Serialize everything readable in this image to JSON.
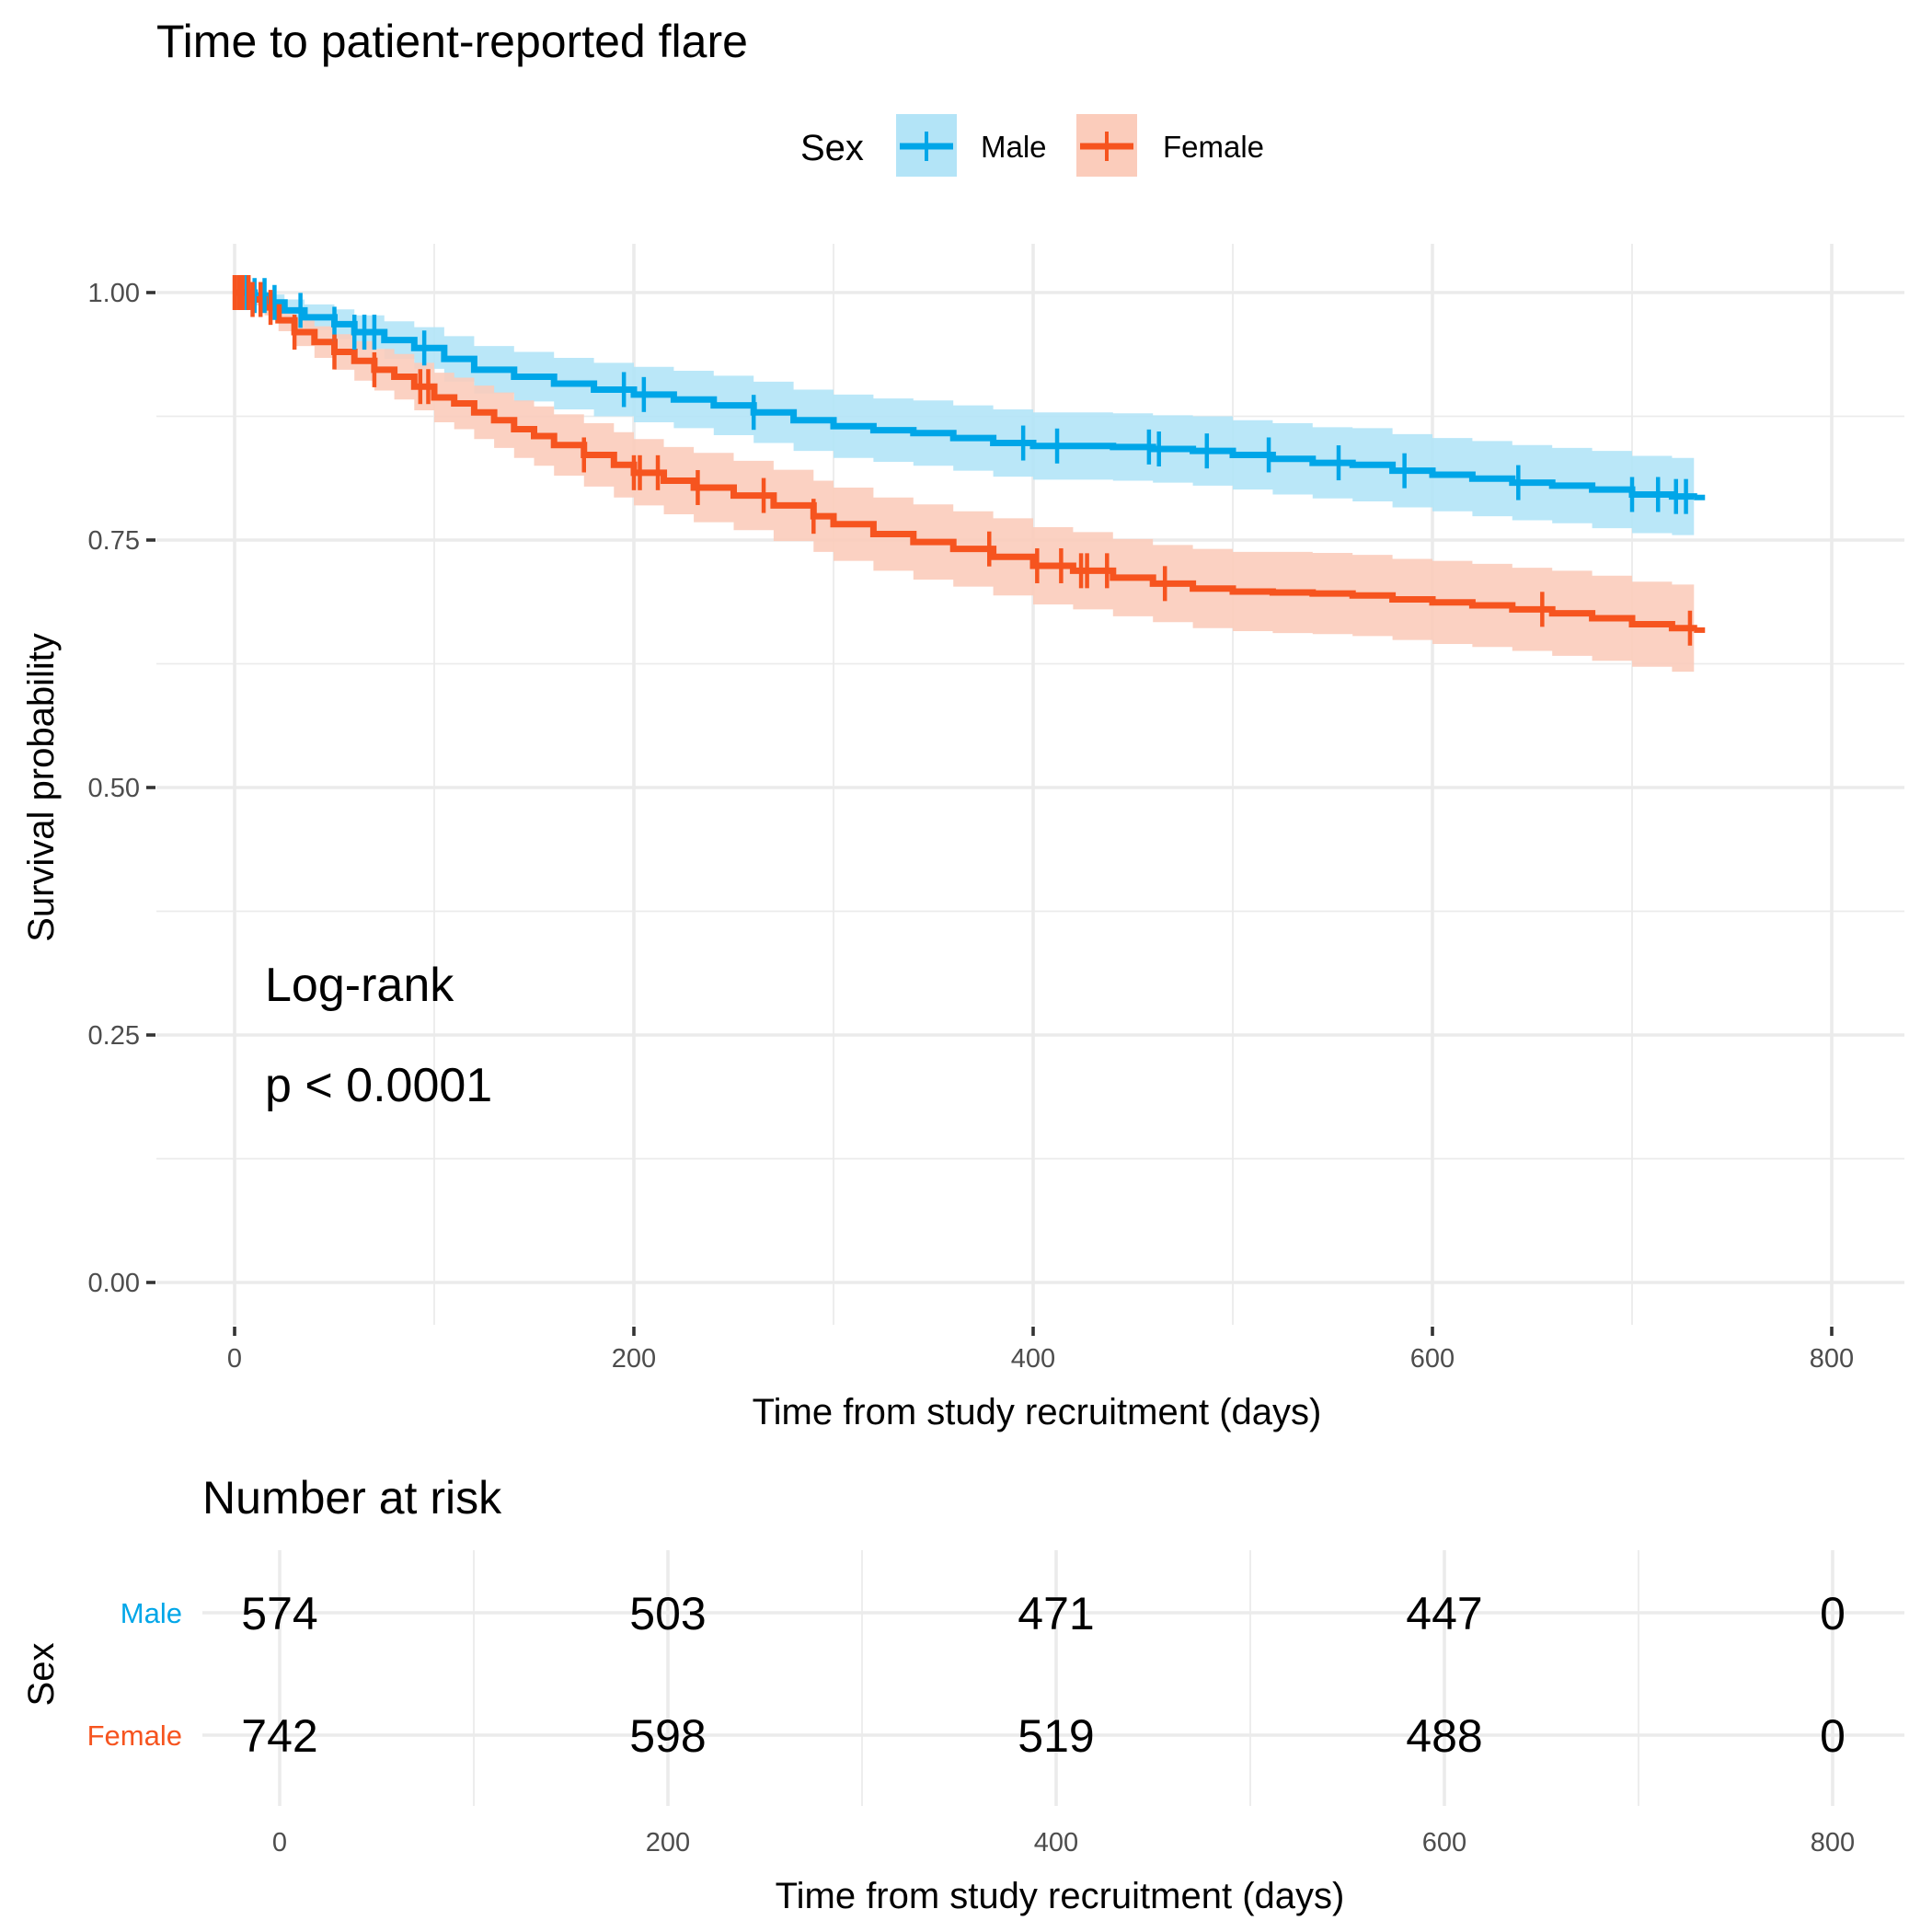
{
  "chart_data": {
    "type": "line",
    "subtype": "kaplan-meier",
    "title": "Time to patient-reported flare",
    "xlabel": "Time from study recruitment (days)",
    "ylabel": "Survival probability",
    "xlim": [
      0,
      800
    ],
    "ylim": [
      0,
      1
    ],
    "x_ticks": [
      0,
      200,
      400,
      600,
      800
    ],
    "x_tick_labels": [
      "0",
      "200",
      "400",
      "600",
      "800"
    ],
    "y_ticks": [
      0,
      0.25,
      0.5,
      0.75,
      1.0
    ],
    "y_tick_labels": [
      "0.00",
      "0.25",
      "0.50",
      "0.75",
      "1.00"
    ],
    "grid": true,
    "legend": {
      "title": "Sex",
      "placement": "top",
      "entries": [
        "Male",
        "Female"
      ]
    },
    "annotation": {
      "line1": "Log-rank",
      "line2": "p < 0.0001"
    },
    "series": [
      {
        "name": "Male",
        "color": "#00A6E8",
        "ribbon_color": "#B3E4F7",
        "x": [
          0,
          10,
          18,
          25,
          35,
          50,
          60,
          75,
          90,
          105,
          120,
          140,
          160,
          180,
          200,
          220,
          240,
          260,
          280,
          300,
          320,
          340,
          360,
          380,
          400,
          420,
          440,
          460,
          480,
          500,
          520,
          540,
          560,
          580,
          600,
          620,
          640,
          660,
          680,
          700,
          720,
          731
        ],
        "survival": [
          1.0,
          0.997,
          0.99,
          0.982,
          0.975,
          0.968,
          0.96,
          0.952,
          0.944,
          0.933,
          0.922,
          0.915,
          0.908,
          0.902,
          0.897,
          0.892,
          0.886,
          0.879,
          0.871,
          0.865,
          0.861,
          0.858,
          0.853,
          0.848,
          0.845,
          0.845,
          0.844,
          0.842,
          0.84,
          0.836,
          0.832,
          0.828,
          0.826,
          0.82,
          0.816,
          0.812,
          0.808,
          0.805,
          0.801,
          0.796,
          0.794,
          0.793
        ],
        "lower": [
          1.0,
          0.992,
          0.982,
          0.972,
          0.962,
          0.953,
          0.943,
          0.933,
          0.923,
          0.91,
          0.898,
          0.89,
          0.882,
          0.875,
          0.869,
          0.863,
          0.856,
          0.848,
          0.84,
          0.833,
          0.829,
          0.825,
          0.82,
          0.814,
          0.811,
          0.811,
          0.81,
          0.808,
          0.805,
          0.801,
          0.796,
          0.792,
          0.789,
          0.783,
          0.779,
          0.774,
          0.77,
          0.767,
          0.762,
          0.757,
          0.755,
          0.754
        ],
        "upper": [
          1.0,
          1.0,
          0.998,
          0.993,
          0.988,
          0.983,
          0.977,
          0.971,
          0.965,
          0.956,
          0.946,
          0.94,
          0.934,
          0.929,
          0.925,
          0.921,
          0.916,
          0.91,
          0.902,
          0.897,
          0.893,
          0.891,
          0.886,
          0.882,
          0.879,
          0.879,
          0.878,
          0.876,
          0.875,
          0.871,
          0.868,
          0.864,
          0.863,
          0.857,
          0.853,
          0.85,
          0.846,
          0.843,
          0.84,
          0.835,
          0.833,
          0.832
        ],
        "censor_times": [
          3,
          6,
          10,
          15,
          20,
          33,
          50,
          60,
          65,
          70,
          95,
          195,
          205,
          260,
          395,
          412,
          458,
          463,
          487,
          518,
          553,
          586,
          643,
          700,
          713,
          722,
          727
        ]
      },
      {
        "name": "Female",
        "color": "#F6541F",
        "ribbon_color": "#FBCCBB",
        "x": [
          0,
          8,
          15,
          22,
          30,
          40,
          50,
          60,
          70,
          80,
          90,
          100,
          110,
          120,
          130,
          140,
          150,
          160,
          175,
          190,
          200,
          215,
          230,
          250,
          270,
          290,
          300,
          320,
          340,
          360,
          380,
          400,
          420,
          440,
          460,
          480,
          500,
          520,
          540,
          560,
          580,
          600,
          620,
          640,
          660,
          680,
          700,
          720,
          731
        ],
        "survival": [
          1.0,
          0.993,
          0.985,
          0.972,
          0.96,
          0.95,
          0.94,
          0.931,
          0.922,
          0.915,
          0.905,
          0.894,
          0.888,
          0.879,
          0.871,
          0.862,
          0.855,
          0.846,
          0.836,
          0.826,
          0.818,
          0.81,
          0.803,
          0.795,
          0.785,
          0.774,
          0.766,
          0.756,
          0.748,
          0.741,
          0.733,
          0.724,
          0.719,
          0.712,
          0.706,
          0.701,
          0.698,
          0.697,
          0.696,
          0.694,
          0.69,
          0.687,
          0.684,
          0.68,
          0.676,
          0.671,
          0.665,
          0.661,
          0.659
        ],
        "lower": [
          1.0,
          0.987,
          0.977,
          0.961,
          0.946,
          0.934,
          0.922,
          0.911,
          0.901,
          0.892,
          0.881,
          0.869,
          0.862,
          0.852,
          0.843,
          0.833,
          0.825,
          0.815,
          0.804,
          0.793,
          0.785,
          0.776,
          0.768,
          0.76,
          0.749,
          0.738,
          0.729,
          0.719,
          0.71,
          0.703,
          0.694,
          0.685,
          0.68,
          0.673,
          0.667,
          0.661,
          0.658,
          0.656,
          0.655,
          0.653,
          0.649,
          0.645,
          0.642,
          0.638,
          0.633,
          0.628,
          0.622,
          0.617,
          0.615
        ],
        "upper": [
          1.0,
          0.999,
          0.993,
          0.983,
          0.974,
          0.966,
          0.958,
          0.951,
          0.943,
          0.938,
          0.929,
          0.919,
          0.914,
          0.906,
          0.899,
          0.891,
          0.885,
          0.877,
          0.868,
          0.859,
          0.852,
          0.844,
          0.838,
          0.83,
          0.821,
          0.81,
          0.803,
          0.793,
          0.786,
          0.779,
          0.772,
          0.763,
          0.758,
          0.751,
          0.745,
          0.741,
          0.738,
          0.738,
          0.737,
          0.735,
          0.731,
          0.729,
          0.726,
          0.722,
          0.719,
          0.714,
          0.708,
          0.705,
          0.703
        ],
        "censor_times": [
          0,
          2,
          4,
          7,
          9,
          13,
          18,
          30,
          50,
          70,
          93,
          97,
          175,
          200,
          203,
          212,
          232,
          265,
          290,
          378,
          402,
          414,
          424,
          427,
          437,
          466,
          655,
          729
        ]
      }
    ],
    "risk_table": {
      "title": "Number at risk",
      "ylabel": "Sex",
      "xlabel": "Time from study recruitment (days)",
      "times": [
        0,
        200,
        400,
        600,
        800
      ],
      "time_labels": [
        "0",
        "200",
        "400",
        "600",
        "800"
      ],
      "rows": [
        {
          "label": "Male",
          "color": "#00A6E8",
          "values": [
            "574",
            "503",
            "471",
            "447",
            "0"
          ]
        },
        {
          "label": "Female",
          "color": "#F6541F",
          "values": [
            "742",
            "598",
            "519",
            "488",
            "0"
          ]
        }
      ]
    }
  }
}
